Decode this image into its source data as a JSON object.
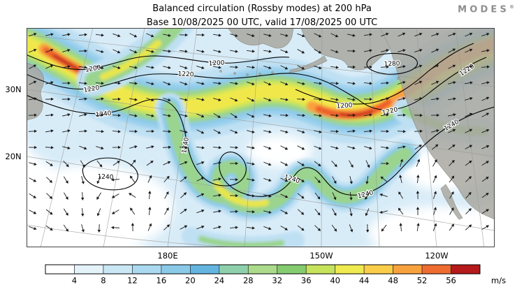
{
  "header": {
    "logo_text": "MODES",
    "logo_reg": "®"
  },
  "chart_data": {
    "type": "heatmap",
    "title": "Balanced circulation (Rossby modes) at 200 hPa",
    "subtitle": "Base 10/08/2025 00 UTC, valid 17/08/2025 00 UTC",
    "level": "200 hPa",
    "base_time": "10/08/2025 00 UTC",
    "valid_time": "17/08/2025 00 UTC",
    "units": "m/s",
    "x_axis": {
      "labels": [
        "180E",
        "150W",
        "120W"
      ]
    },
    "y_axis": {
      "labels": [
        "30N",
        "20N"
      ]
    },
    "colorbar": {
      "tick_values": [
        4,
        8,
        12,
        16,
        20,
        24,
        28,
        32,
        36,
        40,
        44,
        48,
        52,
        56
      ],
      "colors": [
        "#ffffff",
        "#e4f3fa",
        "#c9e7f5",
        "#aad9f0",
        "#8ac9e8",
        "#64b5e0",
        "#8fd0ac",
        "#abdb8b",
        "#85cb70",
        "#c6e35c",
        "#eeea50",
        "#fbce49",
        "#f8a23e",
        "#ee6c30",
        "#b5191b"
      ],
      "units": "m/s"
    },
    "contour_labels": [
      "1200",
      "1220",
      "1240",
      "1280"
    ]
  }
}
